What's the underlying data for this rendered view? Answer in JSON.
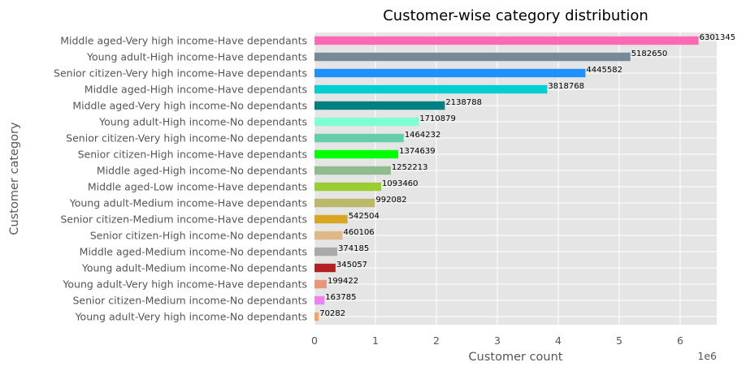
{
  "chart_data": {
    "type": "bar",
    "orientation": "horizontal",
    "title": "Customer-wise category distribution",
    "xlabel": "Customer count",
    "ylabel": "Customer category",
    "x_offset_label": "1e6",
    "xlim": [
      0,
      6600000
    ],
    "x_ticks": [
      0,
      1000000,
      2000000,
      3000000,
      4000000,
      5000000,
      6000000
    ],
    "x_tick_labels": [
      "0",
      "1",
      "2",
      "3",
      "4",
      "5",
      "6"
    ],
    "grid": true,
    "background_color": "#E5E5E5",
    "grid_color": "#FFFFFF",
    "categories": [
      "Middle aged-Very high income-Have dependants",
      "Young adult-High income-Have dependants",
      "Senior citizen-Very high income-Have dependants",
      "Middle aged-High income-Have dependants",
      "Middle aged-Very high income-No dependants",
      "Young adult-High income-No dependants",
      "Senior citizen-Very high income-No dependants",
      "Senior citizen-High income-Have dependants",
      "Middle aged-High income-No dependants",
      "Middle aged-Low income-Have dependants",
      "Young adult-Medium income-Have dependants",
      "Senior citizen-Medium income-Have dependants",
      "Senior citizen-High income-No dependants",
      "Middle aged-Medium income-No dependants",
      "Young adult-Medium income-No dependants",
      "Young adult-Very high income-Have dependants",
      "Senior citizen-Medium income-No dependants",
      "Young adult-Very high income-No dependants"
    ],
    "values": [
      6301345,
      5182650,
      4445582,
      3818768,
      2138788,
      1710879,
      1464232,
      1374639,
      1252213,
      1093460,
      992082,
      542504,
      460106,
      374185,
      345057,
      199422,
      163785,
      70282
    ],
    "value_labels": [
      "6301345",
      "5182650",
      "4445582",
      "3818768",
      "2138788",
      "1710879",
      "1464232",
      "1374639",
      "1252213",
      "1093460",
      "992082",
      "542504",
      "460106",
      "374185",
      "345057",
      "199422",
      "163785",
      "70282"
    ],
    "colors": [
      "#FF69B4",
      "#778899",
      "#1E90FF",
      "#00CED1",
      "#008080",
      "#7FFFD4",
      "#66CDAA",
      "#00FF00",
      "#8FBC8F",
      "#9ACD32",
      "#BDB76B",
      "#DAA520",
      "#DEB887",
      "#A9A9A9",
      "#B22222",
      "#E9967A",
      "#EE82EE",
      "#F4A460"
    ]
  }
}
